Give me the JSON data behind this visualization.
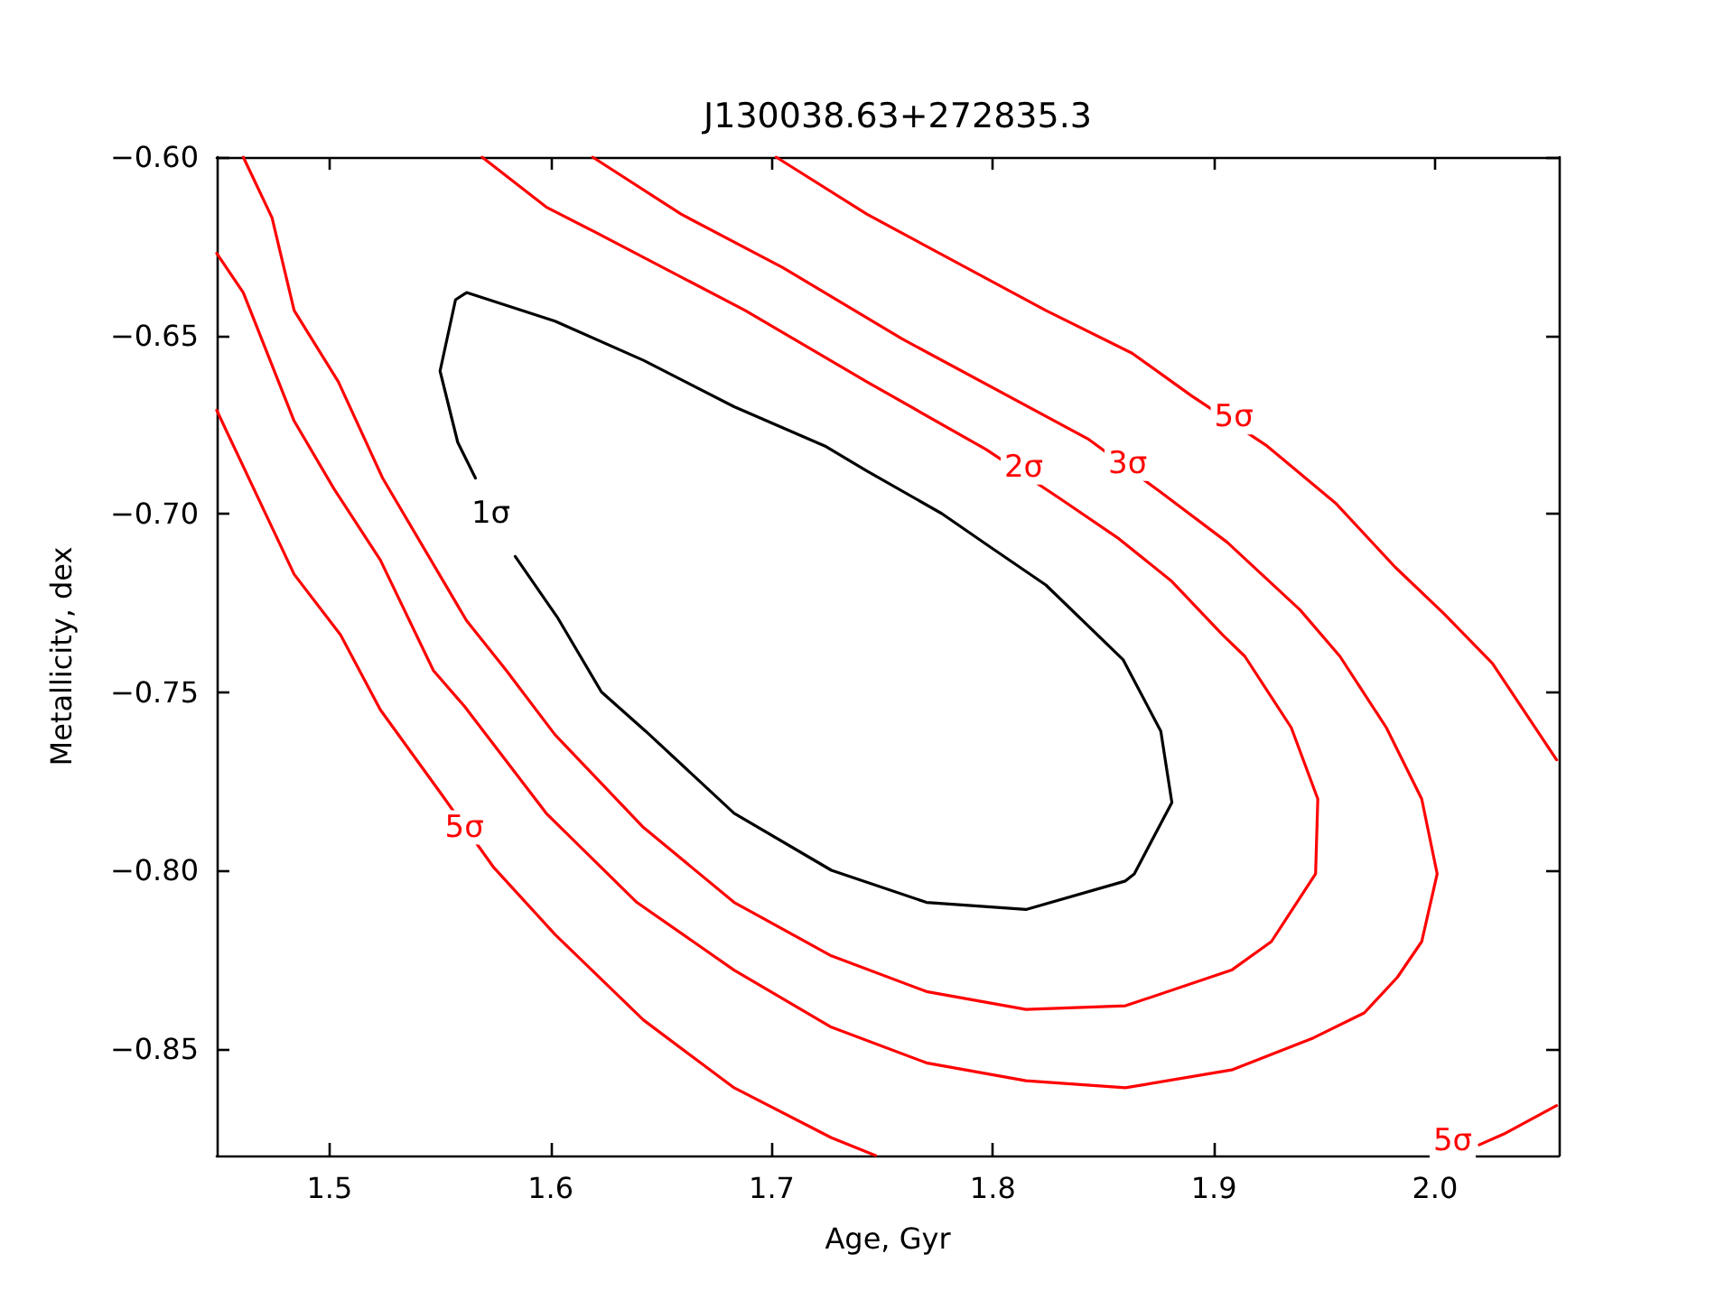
{
  "chart_data": {
    "type": "line",
    "title": "J130038.63+272835.3",
    "xlabel": "Age, Gyr",
    "ylabel": "Metallicity, dex",
    "xlim": [
      1.449,
      2.056
    ],
    "ylim": [
      -0.88,
      -0.6
    ],
    "xticks": [
      {
        "value": 1.5,
        "label": "1.5"
      },
      {
        "value": 1.6,
        "label": "1.6"
      },
      {
        "value": 1.7,
        "label": "1.7"
      },
      {
        "value": 1.8,
        "label": "1.8"
      },
      {
        "value": 1.9,
        "label": "1.9"
      },
      {
        "value": 2.0,
        "label": "2.0"
      }
    ],
    "yticks": [
      {
        "value": -0.6,
        "label": "−0.60"
      },
      {
        "value": -0.65,
        "label": "−0.65"
      },
      {
        "value": -0.7,
        "label": "−0.70"
      },
      {
        "value": -0.75,
        "label": "−0.75"
      },
      {
        "value": -0.8,
        "label": "−0.80"
      },
      {
        "value": -0.85,
        "label": "−0.85"
      }
    ],
    "grid": false,
    "marker": "none",
    "line_style": "solid",
    "series": [
      {
        "color": "#000000",
        "x": [
          1.566,
          1.558,
          1.55,
          1.557,
          1.562,
          1.602,
          1.642,
          1.683,
          1.724,
          1.743,
          1.777,
          1.798,
          1.824,
          1.859,
          1.876,
          1.881,
          1.864,
          1.86,
          1.815,
          1.77,
          1.727,
          1.683,
          1.643,
          1.623,
          1.603,
          1.584
        ],
        "values": [
          -0.69,
          -0.68,
          -0.66,
          -0.64,
          -0.638,
          -0.646,
          -0.657,
          -0.67,
          -0.681,
          -0.688,
          -0.7,
          -0.709,
          -0.72,
          -0.741,
          -0.761,
          -0.781,
          -0.801,
          -0.803,
          -0.811,
          -0.809,
          -0.8,
          -0.784,
          -0.761,
          -0.75,
          -0.729,
          -0.712
        ]
      },
      {
        "color": "#ff0000",
        "x": [
          1.461,
          1.474,
          1.484,
          1.504,
          1.524,
          1.562,
          1.58,
          1.602,
          1.642,
          1.683,
          1.727,
          1.77,
          1.815,
          1.86,
          1.908,
          1.926,
          1.946,
          1.947,
          1.935,
          1.914,
          1.904,
          1.881,
          1.857,
          1.831,
          1.797,
          1.743,
          1.688,
          1.62,
          1.598,
          1.569
        ],
        "values": [
          -0.6,
          -0.617,
          -0.643,
          -0.663,
          -0.69,
          -0.73,
          -0.744,
          -0.762,
          -0.788,
          -0.809,
          -0.824,
          -0.834,
          -0.839,
          -0.838,
          -0.828,
          -0.82,
          -0.801,
          -0.78,
          -0.76,
          -0.74,
          -0.734,
          -0.719,
          -0.707,
          -0.696,
          -0.682,
          -0.663,
          -0.643,
          -0.621,
          -0.614,
          -0.6
        ]
      },
      {
        "color": "#ff0000",
        "x": [
          1.449,
          1.461,
          1.484,
          1.502,
          1.523,
          1.547,
          1.561,
          1.598,
          1.639,
          1.683,
          1.727,
          1.77,
          1.815,
          1.86,
          1.908,
          1.945,
          1.968,
          1.983,
          1.994,
          2.001,
          1.994,
          1.978,
          1.957,
          1.939,
          1.906,
          1.876,
          1.843,
          1.759,
          1.705,
          1.659,
          1.619
        ],
        "values": [
          -0.627,
          -0.638,
          -0.674,
          -0.693,
          -0.713,
          -0.744,
          -0.754,
          -0.784,
          -0.809,
          -0.828,
          -0.844,
          -0.854,
          -0.859,
          -0.861,
          -0.856,
          -0.847,
          -0.84,
          -0.83,
          -0.82,
          -0.801,
          -0.78,
          -0.76,
          -0.74,
          -0.727,
          -0.708,
          -0.694,
          -0.679,
          -0.651,
          -0.631,
          -0.616,
          -0.6
        ]
      },
      {
        "color": "#ff0000",
        "x": [
          1.449,
          1.484,
          1.505,
          1.523,
          1.551,
          1.574,
          1.602,
          1.642,
          1.683,
          1.727,
          1.747
        ],
        "values": [
          -0.671,
          -0.717,
          -0.734,
          -0.755,
          -0.779,
          -0.799,
          -0.818,
          -0.842,
          -0.861,
          -0.875,
          -0.88
        ]
      },
      {
        "color": "#ff0000",
        "x": [
          1.702,
          1.743,
          1.824,
          1.863,
          1.89,
          1.924,
          1.955,
          1.982,
          2.004,
          2.026,
          2.055
        ],
        "values": [
          -0.6,
          -0.616,
          -0.643,
          -0.655,
          -0.667,
          -0.681,
          -0.697,
          -0.715,
          -0.728,
          -0.742,
          -0.769
        ]
      },
      {
        "color": "#ff0000",
        "x": [
          2.02,
          2.031,
          2.055
        ],
        "values": [
          -0.877,
          -0.874,
          -0.866
        ]
      }
    ],
    "annotations": [
      {
        "text": "1σ",
        "x": 1.573,
        "y": -0.7
      },
      {
        "text": "2σ",
        "x": 1.814,
        "y": -0.687
      },
      {
        "text": "3σ",
        "x": 1.861,
        "y": -0.686
      },
      {
        "text": "5σ",
        "x": 1.909,
        "y": -0.673
      },
      {
        "text": "5σ",
        "x": 1.561,
        "y": -0.788
      },
      {
        "text": "5σ",
        "x": 2.008,
        "y": -0.876
      }
    ]
  }
}
